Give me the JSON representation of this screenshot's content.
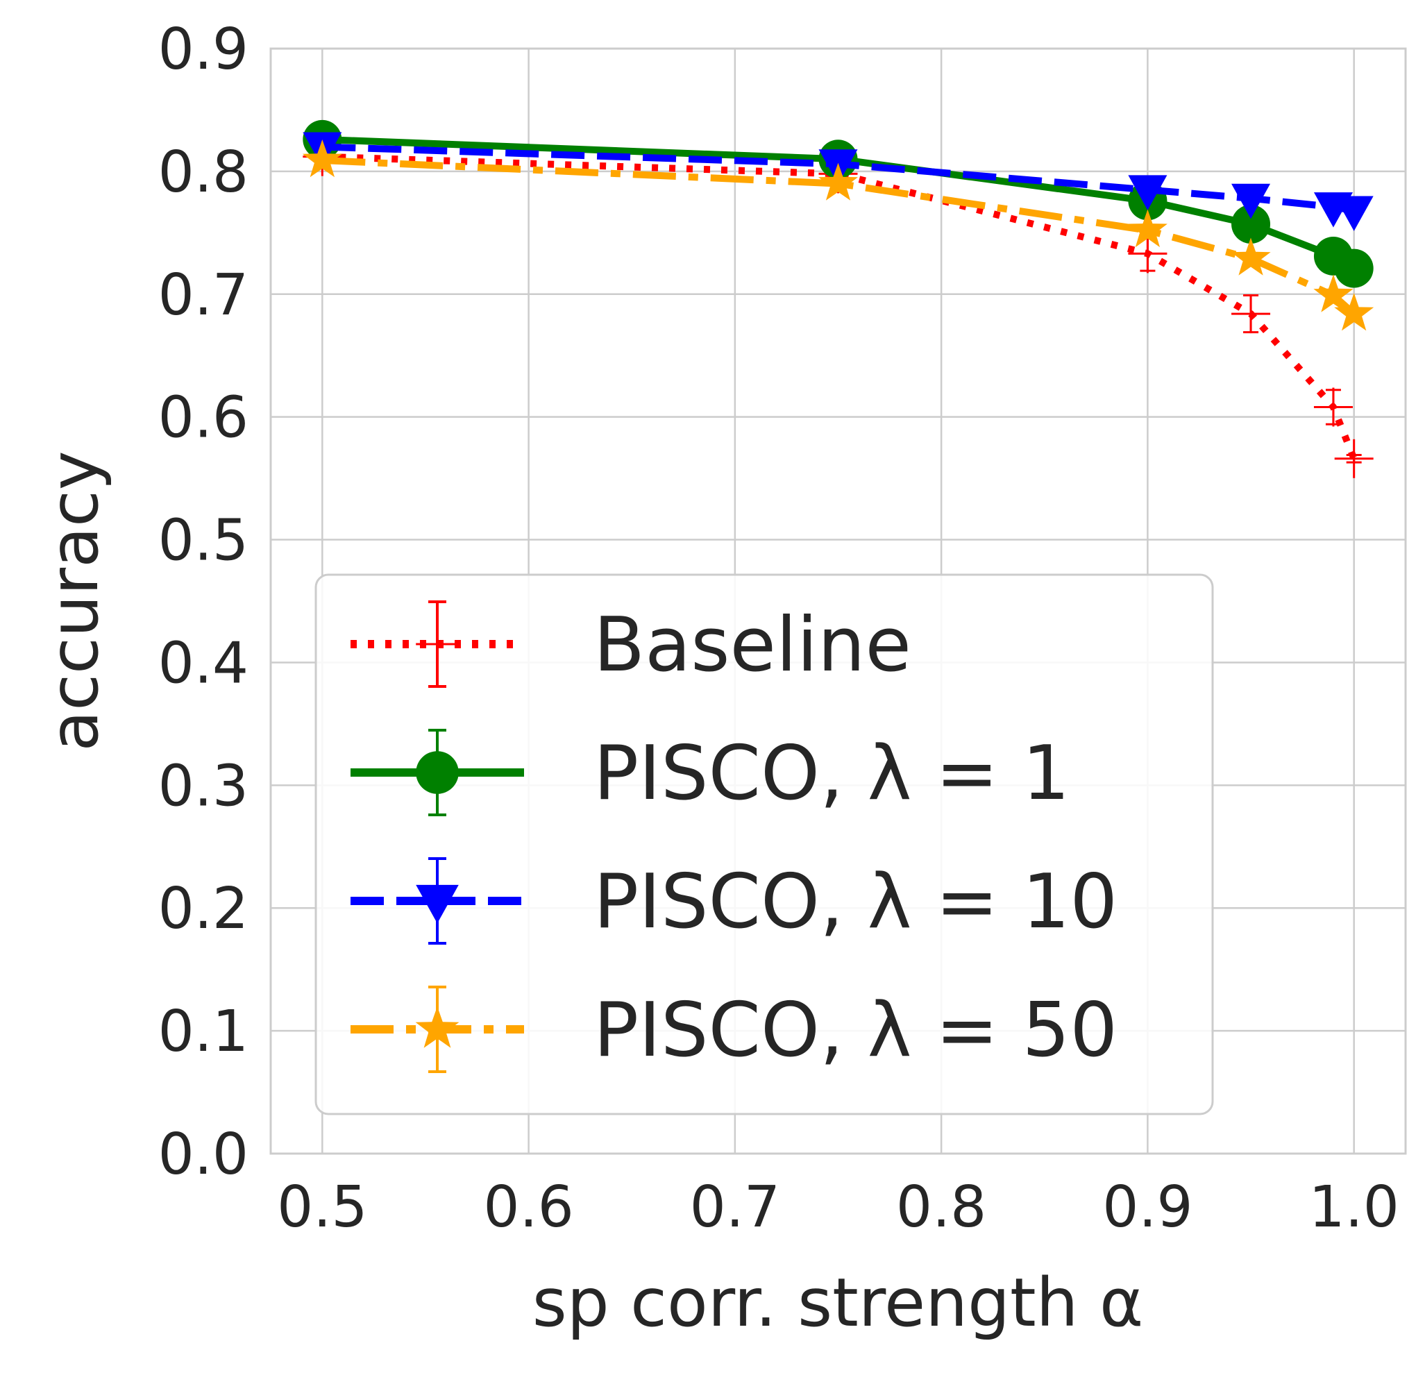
{
  "chart_data": {
    "type": "line",
    "title": "",
    "xlabel": "sp corr. strength α",
    "ylabel": "accuracy",
    "xlim": [
      0.475,
      1.025
    ],
    "ylim": [
      0.0,
      0.9
    ],
    "xticks": [
      "0.5",
      "0.6",
      "0.7",
      "0.8",
      "0.9",
      "1.0"
    ],
    "yticks": [
      "0.0",
      "0.1",
      "0.2",
      "0.3",
      "0.4",
      "0.5",
      "0.6",
      "0.7",
      "0.8",
      "0.9"
    ],
    "grid": true,
    "legend_position": "lower-left",
    "x": [
      0.5,
      0.75,
      0.9,
      0.95,
      0.99,
      1.0
    ],
    "series": [
      {
        "name": "Baseline",
        "color": "#ff0000",
        "linestyle": "dotted",
        "marker": "plus",
        "values": [
          0.812,
          0.798,
          0.733,
          0.684,
          0.608,
          0.566
        ],
        "errors": [
          0.006,
          0.006,
          0.014,
          0.015,
          0.014,
          0.003
        ]
      },
      {
        "name": "PISCO, λ = 1",
        "color": "#008000",
        "linestyle": "solid",
        "marker": "circle",
        "values": [
          0.826,
          0.81,
          0.776,
          0.757,
          0.731,
          0.721
        ],
        "errors": [
          0.004,
          0.004,
          0.004,
          0.004,
          0.004,
          0.004
        ]
      },
      {
        "name": "PISCO, λ = 10",
        "color": "#0000ff",
        "linestyle": "dashed",
        "marker": "triangle-down",
        "values": [
          0.82,
          0.806,
          0.785,
          0.778,
          0.771,
          0.768
        ],
        "errors": [
          0.003,
          0.003,
          0.003,
          0.003,
          0.003,
          0.003
        ]
      },
      {
        "name": "PISCO, λ = 50",
        "color": "#ffa500",
        "linestyle": "dashdot",
        "marker": "star",
        "values": [
          0.809,
          0.79,
          0.752,
          0.729,
          0.699,
          0.684
        ],
        "errors": [
          0.004,
          0.004,
          0.004,
          0.004,
          0.004,
          0.004
        ]
      }
    ]
  }
}
